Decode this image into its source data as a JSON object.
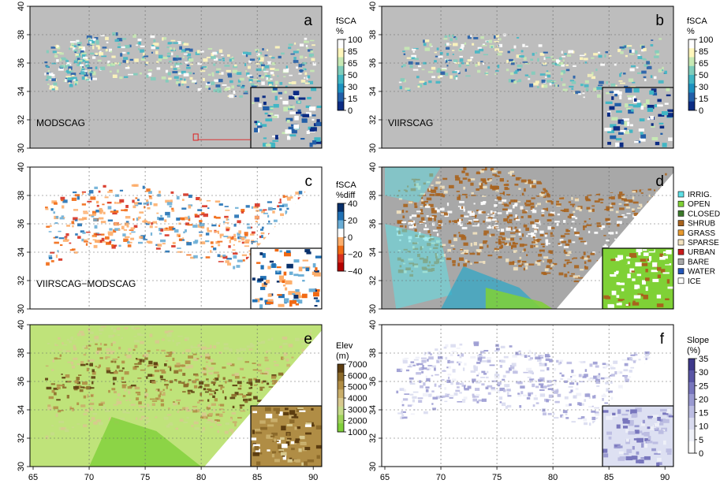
{
  "figure": {
    "x_ticks": [
      "65",
      "70",
      "75",
      "80",
      "85",
      "90"
    ],
    "y_ticks": [
      "30",
      "32",
      "34",
      "36",
      "38",
      "40"
    ]
  },
  "panels": [
    {
      "letter": "a",
      "label": "MODSCAG",
      "map": "fsca",
      "inset": "fsca"
    },
    {
      "letter": "b",
      "label": "VIIRSCAG",
      "map": "fsca-light",
      "inset": "fsca"
    },
    {
      "letter": "c",
      "label": "VIIRSCAG−MODSCAG",
      "map": "diff",
      "inset": "diff"
    },
    {
      "letter": "d",
      "label": "",
      "map": "landcover",
      "inset": "landcover"
    },
    {
      "letter": "e",
      "label": "",
      "map": "elev",
      "inset": "elev"
    },
    {
      "letter": "f",
      "label": "",
      "map": "slope",
      "inset": "slope"
    }
  ],
  "legends": {
    "a": {
      "title1": "fSCA",
      "title2": "%",
      "ticks": [
        "100",
        "85",
        "65",
        "50",
        "30",
        "15",
        "0"
      ],
      "colors": [
        "#ffffff",
        "#fff7bc",
        "#c7e9b4",
        "#7fcdbb",
        "#41b6c4",
        "#1d91c0",
        "#225ea8",
        "#0c2c84"
      ]
    },
    "b": {
      "title1": "fSCA",
      "title2": "%",
      "ticks": [
        "100",
        "85",
        "65",
        "50",
        "30",
        "15",
        "0"
      ],
      "colors": [
        "#ffffff",
        "#fff7bc",
        "#c7e9b4",
        "#7fcdbb",
        "#41b6c4",
        "#1d91c0",
        "#225ea8",
        "#0c2c84"
      ]
    },
    "c": {
      "title1": "fSCA",
      "title2": "%diff",
      "ticks": [
        "40",
        "20",
        "0",
        "−20",
        "−40"
      ],
      "colors": [
        "#08306b",
        "#2171b5",
        "#6baed6",
        "#ffffff",
        "#fdae6b",
        "#f16913",
        "#d7301f",
        "#b30000"
      ]
    },
    "e": {
      "title1": "Elev",
      "title2": "(m)",
      "ticks": [
        "7000",
        "6000",
        "5000",
        "4000",
        "3000",
        "2000",
        "1000"
      ],
      "colors": [
        "#5c3d10",
        "#8c6a2a",
        "#b08d45",
        "#c9ae6a",
        "#d8c98e",
        "#c6db8a",
        "#9fd45a",
        "#7fcf3a"
      ]
    },
    "f": {
      "title1": "Slope",
      "title2": "(%)",
      "ticks": [
        "35",
        "30",
        "25",
        "20",
        "15",
        "10",
        "5",
        "0"
      ],
      "colors": [
        "#3f3a8c",
        "#5a56a6",
        "#7876bd",
        "#9a9ad1",
        "#bcbde2",
        "#d9dbef",
        "#eef0f8",
        "#ffffff"
      ]
    }
  },
  "landcover_legend": [
    {
      "label": "IRRIG.",
      "color": "#5fe0e6"
    },
    {
      "label": "OPEN",
      "color": "#7fd136"
    },
    {
      "label": "CLOSED",
      "color": "#3c7a2a"
    },
    {
      "label": "SHRUB",
      "color": "#a8631d"
    },
    {
      "label": "GRASS",
      "color": "#e89a2e"
    },
    {
      "label": "SPARSE",
      "color": "#f3e3c0"
    },
    {
      "label": "URBAN",
      "color": "#c81a1a"
    },
    {
      "label": "BARE",
      "color": "#a8a8a8"
    },
    {
      "label": "WATER",
      "color": "#2456b8"
    },
    {
      "label": "ICE",
      "color": "#ffffff"
    }
  ]
}
